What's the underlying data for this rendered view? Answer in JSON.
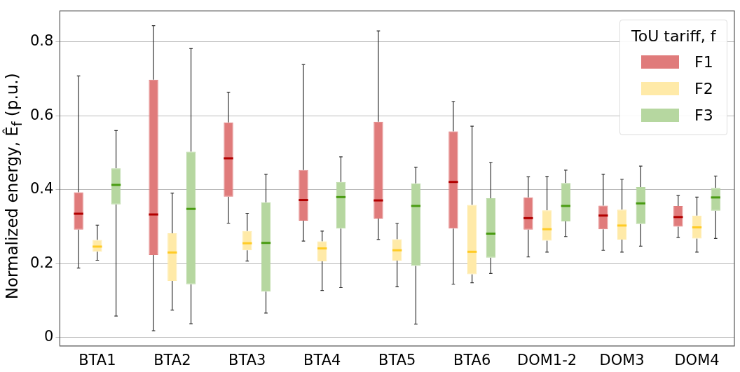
{
  "chart_data": {
    "type": "box",
    "ylabel": "Normalized energy, Ê$_{f}$ (p.u.)",
    "legend_title": "ToU tariff, f",
    "legend": "top right",
    "grid": "y",
    "categories": [
      "BTA1",
      "BTA2",
      "BTA3",
      "BTA4",
      "BTA5",
      "BTA6",
      "DOM1-2",
      "DOM3",
      "DOM4"
    ],
    "ylim": [
      -0.023,
      0.884
    ],
    "yticks": [
      0,
      0.2,
      0.4,
      0.6,
      0.8
    ],
    "series": [
      {
        "name": "F1",
        "color": "#e07b7b",
        "boxes": [
          {
            "low": 0.188,
            "q1": 0.292,
            "median": 0.335,
            "q3": 0.393,
            "high": 0.708
          },
          {
            "low": 0.018,
            "q1": 0.223,
            "median": 0.333,
            "q3": 0.698,
            "high": 0.844
          },
          {
            "low": 0.309,
            "q1": 0.381,
            "median": 0.485,
            "q3": 0.582,
            "high": 0.664
          },
          {
            "low": 0.261,
            "q1": 0.316,
            "median": 0.372,
            "q3": 0.453,
            "high": 0.739
          },
          {
            "low": 0.265,
            "q1": 0.322,
            "median": 0.371,
            "q3": 0.584,
            "high": 0.83
          },
          {
            "low": 0.144,
            "q1": 0.295,
            "median": 0.421,
            "q3": 0.558,
            "high": 0.639
          },
          {
            "low": 0.218,
            "q1": 0.292,
            "median": 0.323,
            "q3": 0.379,
            "high": 0.435
          },
          {
            "low": 0.236,
            "q1": 0.293,
            "median": 0.33,
            "q3": 0.357,
            "high": 0.442
          },
          {
            "low": 0.271,
            "q1": 0.3,
            "median": 0.326,
            "q3": 0.356,
            "high": 0.384
          }
        ]
      },
      {
        "name": "F2",
        "color": "#ffeaa8",
        "boxes": [
          {
            "low": 0.209,
            "q1": 0.232,
            "median": 0.246,
            "q3": 0.264,
            "high": 0.304
          },
          {
            "low": 0.074,
            "q1": 0.153,
            "median": 0.23,
            "q3": 0.282,
            "high": 0.391
          },
          {
            "low": 0.207,
            "q1": 0.236,
            "median": 0.255,
            "q3": 0.288,
            "high": 0.336
          },
          {
            "low": 0.127,
            "q1": 0.206,
            "median": 0.241,
            "q3": 0.26,
            "high": 0.288
          },
          {
            "low": 0.137,
            "q1": 0.208,
            "median": 0.236,
            "q3": 0.266,
            "high": 0.309
          },
          {
            "low": 0.148,
            "q1": 0.171,
            "median": 0.232,
            "q3": 0.359,
            "high": 0.572
          },
          {
            "low": 0.231,
            "q1": 0.262,
            "median": 0.293,
            "q3": 0.344,
            "high": 0.436
          },
          {
            "low": 0.231,
            "q1": 0.265,
            "median": 0.303,
            "q3": 0.346,
            "high": 0.428
          },
          {
            "low": 0.231,
            "q1": 0.268,
            "median": 0.298,
            "q3": 0.33,
            "high": 0.38
          }
        ]
      },
      {
        "name": "F3",
        "color": "#b6d7a0",
        "boxes": [
          {
            "low": 0.058,
            "q1": 0.36,
            "median": 0.413,
            "q3": 0.458,
            "high": 0.56
          },
          {
            "low": 0.037,
            "q1": 0.144,
            "median": 0.348,
            "q3": 0.503,
            "high": 0.782
          },
          {
            "low": 0.066,
            "q1": 0.124,
            "median": 0.256,
            "q3": 0.366,
            "high": 0.442
          },
          {
            "low": 0.135,
            "q1": 0.295,
            "median": 0.38,
            "q3": 0.421,
            "high": 0.489
          },
          {
            "low": 0.036,
            "q1": 0.194,
            "median": 0.356,
            "q3": 0.417,
            "high": 0.461
          },
          {
            "low": 0.173,
            "q1": 0.216,
            "median": 0.281,
            "q3": 0.377,
            "high": 0.474
          },
          {
            "low": 0.273,
            "q1": 0.314,
            "median": 0.356,
            "q3": 0.418,
            "high": 0.453
          },
          {
            "low": 0.247,
            "q1": 0.307,
            "median": 0.363,
            "q3": 0.407,
            "high": 0.464
          },
          {
            "low": 0.268,
            "q1": 0.343,
            "median": 0.379,
            "q3": 0.405,
            "high": 0.437
          }
        ]
      }
    ]
  }
}
